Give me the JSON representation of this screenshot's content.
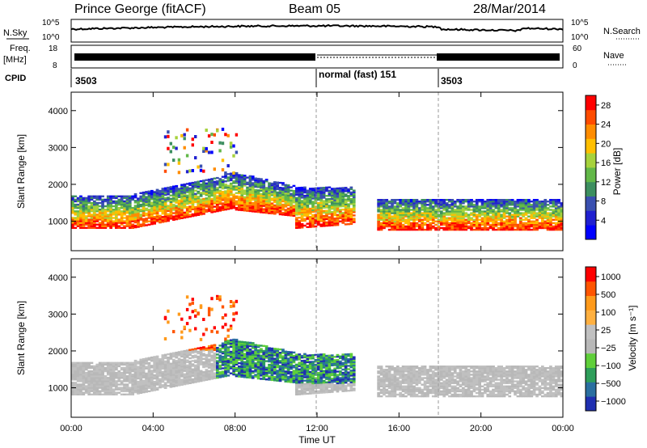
{
  "header": {
    "station": "Prince George (fitACF)",
    "beam": "Beam 05",
    "date": "28/Mar/2014"
  },
  "top_panel": {
    "left_labels": {
      "nsky": "N.Sky",
      "freq": "Freq.",
      "freq_unit": "[MHz]",
      "cpid": "CPID"
    },
    "right_labels": {
      "nsearch": "N.Search",
      "nave": "Nave"
    },
    "noise_ticks_left": [
      "10^5",
      "10^0"
    ],
    "noise_ticks_right": [
      "10^5",
      "10^0"
    ],
    "freq_ticks": [
      "18",
      "8"
    ],
    "nave_ticks": [
      "60",
      "0"
    ],
    "cpid_segments": [
      {
        "label": "3503",
        "start_h": 0
      },
      {
        "label": "normal (fast) 151",
        "start_h": 12
      },
      {
        "label": "3503",
        "start_h": 18
      }
    ]
  },
  "colors": {
    "power": [
      "#0000ff",
      "#2020d0",
      "#3a50b0",
      "#3d8f60",
      "#62b848",
      "#a6d23c",
      "#ffbf00",
      "#ff8c00",
      "#ff4c00",
      "#ff0000"
    ],
    "velocity": [
      "#ff0000",
      "#ff5500",
      "#ff9a1a",
      "#ffb040",
      "#c0c0c0",
      "#b8b8b8",
      "#5fcf3a",
      "#2e9e5a",
      "#2a6fa0",
      "#1f2fb0"
    ]
  },
  "chart_data": [
    {
      "type": "heatmap",
      "title": "",
      "xlabel": "Time UT",
      "ylabel": "Slant Range [km]",
      "xlim": [
        0,
        24
      ],
      "ylim": [
        200,
        4500
      ],
      "x_ticks": [
        "00:00",
        "04:00",
        "08:00",
        "12:00",
        "16:00",
        "20:00",
        "00:00"
      ],
      "y_ticks": [
        "1000",
        "2000",
        "3000",
        "4000"
      ],
      "colorbar_label": "Power [dB]",
      "colorbar_ticks": [
        "4",
        "8",
        "12",
        "16",
        "20",
        "24",
        "28"
      ],
      "colorbar_range": [
        0,
        30
      ]
    },
    {
      "type": "heatmap",
      "title": "",
      "xlabel": "Time UT",
      "ylabel": "Slant Range [km]",
      "xlim": [
        0,
        24
      ],
      "ylim": [
        200,
        4500
      ],
      "x_ticks": [
        "00:00",
        "04:00",
        "08:00",
        "12:00",
        "16:00",
        "20:00",
        "00:00"
      ],
      "y_ticks": [
        "1000",
        "2000",
        "3000",
        "4000"
      ],
      "colorbar_label": "Velocity [m s⁻¹]",
      "colorbar_ticks": [
        "1000",
        "500",
        "100",
        "25",
        "−25",
        "−100",
        "−500",
        "−1000"
      ],
      "colorbar_range": [
        -1000,
        1000
      ]
    }
  ],
  "xaxis_title": "Time UT"
}
